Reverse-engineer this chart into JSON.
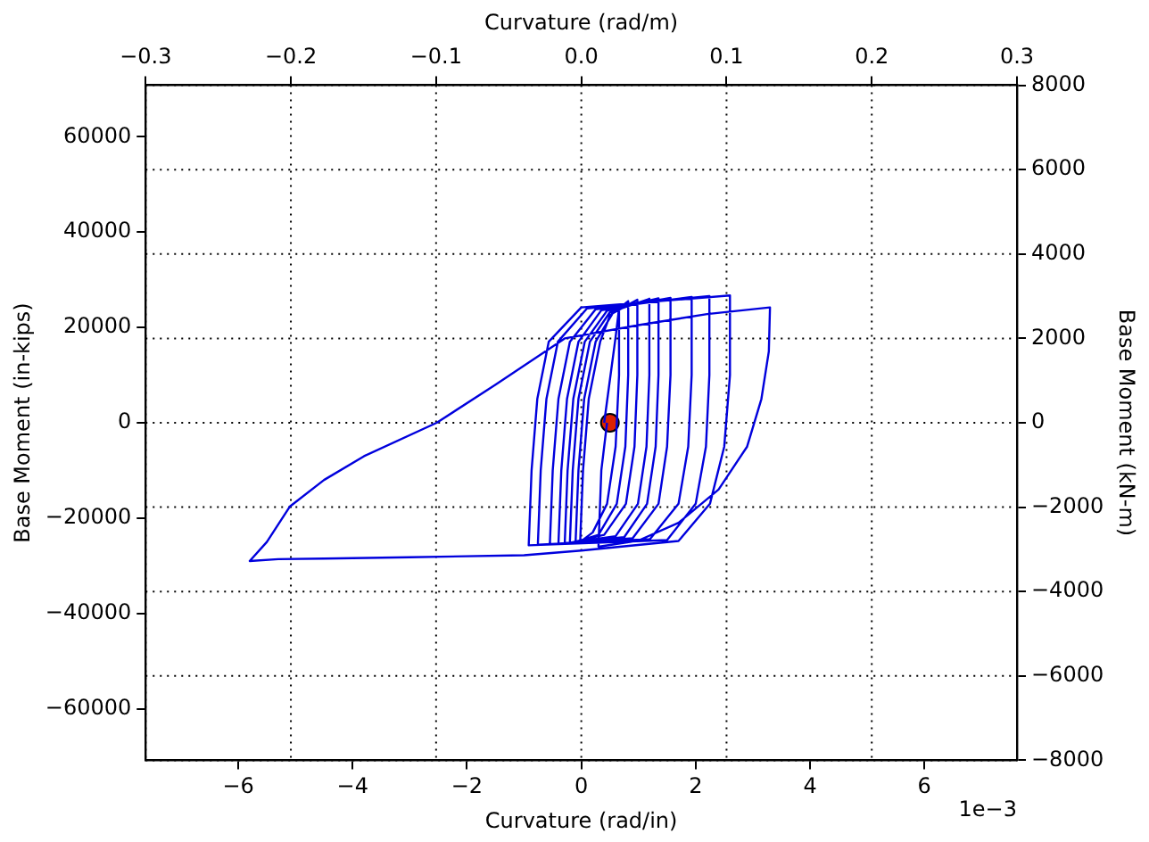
{
  "chart_data": {
    "type": "line",
    "xlabel": "Curvature (rad/in)",
    "ylabel": "Base Moment (in-kips)",
    "x2label": "Curvature (rad/m)",
    "y2label": "Base Moment (kN-m)",
    "annotations": [
      "1e−3"
    ],
    "xlim": [
      -7.62,
      7.62
    ],
    "xticks": [
      {
        "value": -6,
        "label": "−6"
      },
      {
        "value": -4,
        "label": "−4"
      },
      {
        "value": -2,
        "label": "−2"
      },
      0,
      2,
      4,
      6
    ],
    "x2lim": [
      -0.3,
      0.3
    ],
    "x2ticks": [
      {
        "value": -0.3,
        "label": "−0.3"
      },
      {
        "value": -0.2,
        "label": "−0.2"
      },
      {
        "value": -0.1,
        "label": "−0.1"
      },
      {
        "value": 0,
        "label": "0.0"
      },
      {
        "value": 0.1,
        "label": "0.1"
      },
      {
        "value": 0.2,
        "label": "0.2"
      },
      {
        "value": 0.3,
        "label": "0.3"
      }
    ],
    "ylim": [
      -70810,
      70810
    ],
    "yticks": [
      {
        "value": -60000,
        "label": "−60000"
      },
      {
        "value": -40000,
        "label": "−40000"
      },
      {
        "value": -20000,
        "label": "−20000"
      },
      0,
      20000,
      40000,
      60000
    ],
    "y2lim": [
      -8000,
      8000
    ],
    "y2ticks": [
      {
        "value": -8000,
        "label": "−8000"
      },
      {
        "value": -6000,
        "label": "−6000"
      },
      {
        "value": -4000,
        "label": "−4000"
      },
      {
        "value": -2000,
        "label": "−2000"
      },
      0,
      2000,
      4000,
      6000,
      8000
    ],
    "grid": true,
    "line_style": "solid",
    "legend": false,
    "series": [
      {
        "color": "#0000dd",
        "marker": "none",
        "x": [
          0.4,
          0.6,
          0.66,
          0.66,
          0.6,
          0.45,
          0.2,
          -0.02,
          0.03,
          0.13,
          0.33,
          0.5,
          0.82,
          0.82,
          0.77,
          0.62,
          0.3,
          -0.1,
          -0.05,
          0.05,
          0.25,
          0.55,
          0.98,
          0.98,
          0.93,
          0.78,
          0.4,
          -0.2,
          -0.15,
          -0.05,
          0.15,
          0.5,
          1.19,
          1.19,
          1.14,
          0.99,
          0.6,
          -0.29,
          -0.24,
          -0.14,
          0.06,
          0.45,
          1.35,
          1.35,
          1.3,
          1.15,
          0.75,
          -0.4,
          -0.35,
          -0.25,
          -0.05,
          0.35,
          1.56,
          1.56,
          1.5,
          1.35,
          0.9,
          -0.55,
          -0.5,
          -0.4,
          -0.2,
          0.25,
          1.93,
          1.93,
          1.87,
          1.7,
          1.2,
          -0.76,
          -0.71,
          -0.61,
          -0.41,
          0.1,
          2.24,
          2.24,
          2.18,
          2,
          1.5,
          -0.92,
          -0.87,
          -0.77,
          -0.57,
          0,
          2.6,
          2.6,
          2.5,
          2.25,
          1.7,
          0,
          -1,
          -3,
          -4.5,
          -5.3,
          -5.8,
          -5.5,
          -5.1,
          -4.5,
          -3.8,
          -2.53,
          -1.5,
          -0.29,
          1,
          2.2,
          3.3,
          3.28,
          3.15,
          2.9,
          2.4,
          1.7,
          1,
          0.3,
          0.35,
          0.45
        ],
        "values": [
          0,
          18000,
          24000,
          10000,
          -5000,
          -17000,
          -23000,
          -25000,
          -10000,
          5000,
          17000,
          22500,
          25500,
          10000,
          -5000,
          -17000,
          -23500,
          -25000,
          -10000,
          5000,
          17000,
          23000,
          25800,
          10000,
          -5000,
          -17000,
          -23500,
          -25200,
          -10000,
          5000,
          17000,
          23200,
          26000,
          10000,
          -5000,
          -17000,
          -23800,
          -25300,
          -10000,
          5000,
          17000,
          23500,
          26100,
          10000,
          -5000,
          -17000,
          -24000,
          -25400,
          -10000,
          5000,
          17000,
          23600,
          26200,
          10000,
          -5000,
          -17000,
          -24200,
          -25500,
          -10000,
          5000,
          17000,
          23800,
          26400,
          10000,
          -5000,
          -17000,
          -24400,
          -25600,
          -10000,
          5000,
          17000,
          24000,
          26600,
          10000,
          -5000,
          -17000,
          -24600,
          -25700,
          -10000,
          5000,
          17000,
          24200,
          26700,
          10000,
          -5000,
          -17000,
          -24800,
          -26800,
          -27800,
          -28200,
          -28500,
          -28600,
          -29000,
          -25000,
          -17600,
          -12000,
          -7000,
          0,
          8000,
          17700,
          20500,
          22800,
          24200,
          15000,
          5000,
          -5000,
          -14000,
          -21000,
          -24700,
          -26000,
          -10000,
          0
        ]
      },
      {
        "type": "scatter",
        "color": "#dd2200",
        "marker": "circle",
        "x": [
          0.5
        ],
        "values": [
          0
        ]
      }
    ]
  }
}
